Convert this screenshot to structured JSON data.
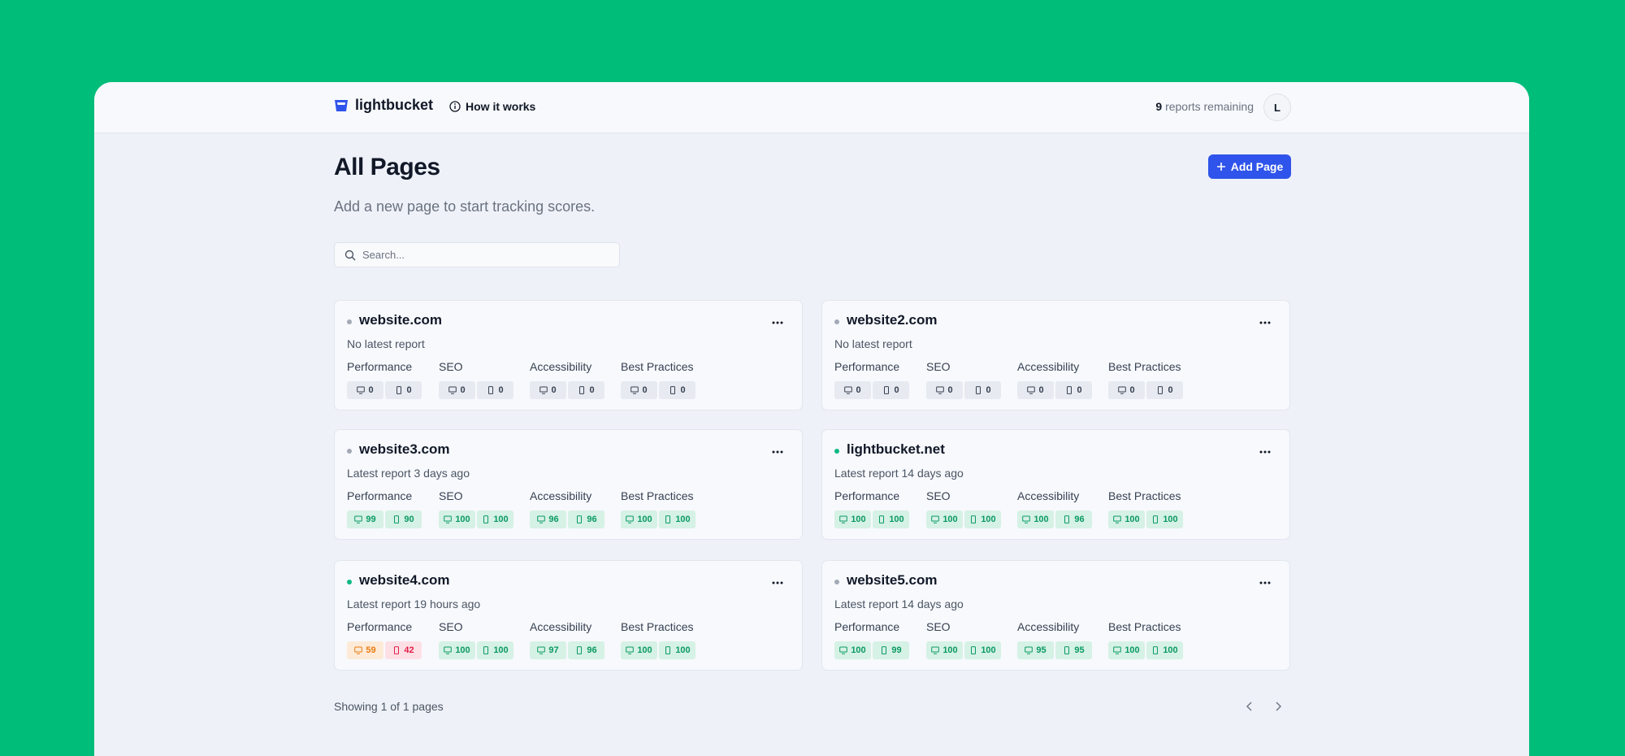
{
  "header": {
    "brand": "lightbucket",
    "how_it_works": "How it works",
    "reports_count": 9,
    "reports_label": "reports remaining",
    "avatar": "L"
  },
  "page": {
    "title": "All Pages",
    "subtitle": "Add a new page to start tracking scores.",
    "search_placeholder": "Search...",
    "add_button": "Add Page"
  },
  "metrics": [
    "Performance",
    "SEO",
    "Accessibility",
    "Best Practices"
  ],
  "cards": [
    {
      "name": "website.com",
      "status": "No latest report",
      "active": false,
      "scores": [
        [
          0,
          0
        ],
        [
          0,
          0
        ],
        [
          0,
          0
        ],
        [
          0,
          0
        ]
      ]
    },
    {
      "name": "website2.com",
      "status": "No latest report",
      "active": false,
      "scores": [
        [
          0,
          0
        ],
        [
          0,
          0
        ],
        [
          0,
          0
        ],
        [
          0,
          0
        ]
      ]
    },
    {
      "name": "website3.com",
      "status": "Latest report 3 days ago",
      "active": false,
      "scores": [
        [
          99,
          90
        ],
        [
          100,
          100
        ],
        [
          96,
          96
        ],
        [
          100,
          100
        ]
      ]
    },
    {
      "name": "lightbucket.net",
      "status": "Latest report 14 days ago",
      "active": true,
      "scores": [
        [
          100,
          100
        ],
        [
          100,
          100
        ],
        [
          100,
          96
        ],
        [
          100,
          100
        ]
      ]
    },
    {
      "name": "website4.com",
      "status": "Latest report 19 hours ago",
      "active": true,
      "scores": [
        [
          59,
          42
        ],
        [
          100,
          100
        ],
        [
          97,
          96
        ],
        [
          100,
          100
        ]
      ]
    },
    {
      "name": "website5.com",
      "status": "Latest report 14 days ago",
      "active": false,
      "scores": [
        [
          100,
          99
        ],
        [
          100,
          100
        ],
        [
          95,
          95
        ],
        [
          100,
          100
        ]
      ]
    }
  ],
  "footer": {
    "summary": "Showing 1 of 1 pages"
  }
}
